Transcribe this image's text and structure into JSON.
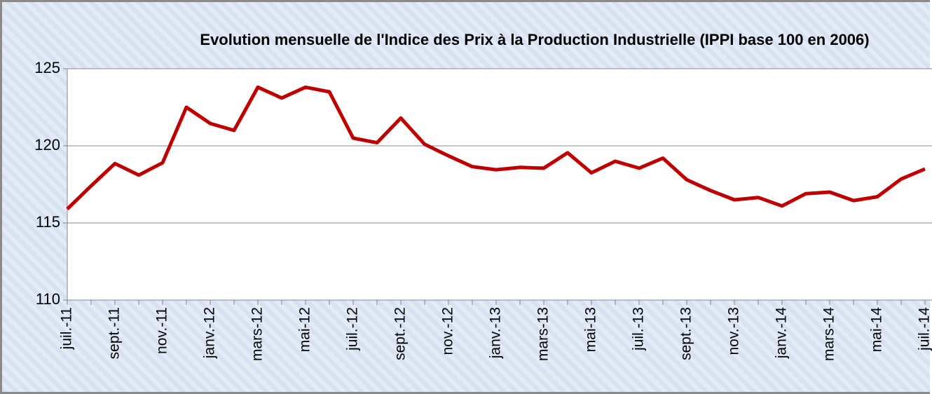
{
  "chart_data": {
    "type": "line",
    "title": "Evolution mensuelle de l'Indice des Prix à la Production Industrielle (IPPI base 100 en 2006)",
    "categories": [
      "juil.-11",
      null,
      "sept.-11",
      null,
      "nov.-11",
      null,
      "janv.-12",
      null,
      "mars-12",
      null,
      "mai-12",
      null,
      "juil.-12",
      null,
      "sept.-12",
      null,
      "nov.-12",
      null,
      "janv.-13",
      null,
      "mars-13",
      null,
      "mai-13",
      null,
      "juil.-13",
      null,
      "sept.-13",
      null,
      "nov.-13",
      null,
      "janv.-14",
      null,
      "mars-14",
      null,
      "mai-14",
      null,
      "juil.-14"
    ],
    "series": [
      {
        "color": "#c00000",
        "values": [
          115.9,
          117.4,
          118.85,
          118.1,
          118.9,
          122.5,
          121.45,
          121.0,
          123.8,
          123.1,
          123.8,
          123.5,
          120.5,
          120.2,
          121.8,
          120.1,
          119.35,
          118.65,
          118.45,
          118.6,
          118.55,
          119.55,
          118.25,
          119.0,
          118.55,
          119.2,
          117.8,
          117.1,
          116.5,
          116.65,
          116.1,
          116.9,
          117.0,
          116.45,
          116.7,
          117.85,
          118.5
        ]
      }
    ],
    "ylim": [
      110,
      125
    ],
    "yticks": [
      110,
      115,
      120,
      125
    ],
    "grid": true
  }
}
